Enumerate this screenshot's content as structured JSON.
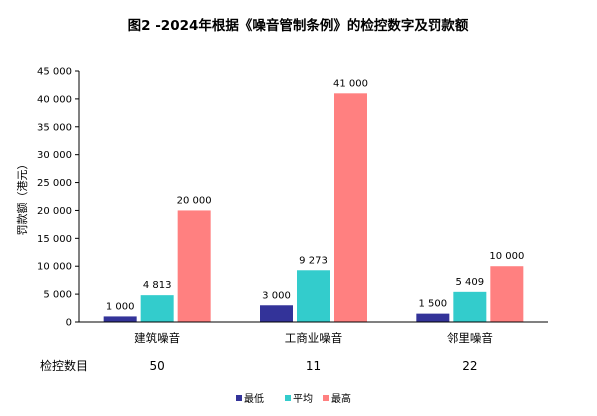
{
  "chart_data": {
    "type": "bar",
    "title": "图2 -2024年根据《噪音管制条例》的检控数字及罚款额",
    "ylabel": "罚款额（港元）",
    "ylim": [
      0,
      45000
    ],
    "yticks": [
      "0",
      "5 000",
      "10 000",
      "15 000",
      "20 000",
      "25 000",
      "30 000",
      "35 000",
      "40 000",
      "45 000"
    ],
    "ytick_values": [
      0,
      5000,
      10000,
      15000,
      20000,
      25000,
      30000,
      35000,
      40000,
      45000
    ],
    "categories": [
      "建筑噪音",
      "工商业噪音",
      "邻里噪音"
    ],
    "series": [
      {
        "name": "最低",
        "color": "#333399",
        "values": [
          1000,
          3000,
          1500
        ],
        "labels": [
          "1 000",
          "3 000",
          "1 500"
        ]
      },
      {
        "name": "平均",
        "color": "#33CCCC",
        "values": [
          4813,
          9273,
          5409
        ],
        "labels": [
          "4 813",
          "9 273",
          "5 409"
        ]
      },
      {
        "name": "最高",
        "color": "#FF8080",
        "values": [
          20000,
          41000,
          10000
        ],
        "labels": [
          "20 000",
          "41 000",
          "10 000"
        ]
      }
    ],
    "table_row": {
      "label": "检控数目",
      "values": [
        "50",
        "11",
        "22"
      ]
    },
    "legend_position": "bottom",
    "grid": false
  }
}
